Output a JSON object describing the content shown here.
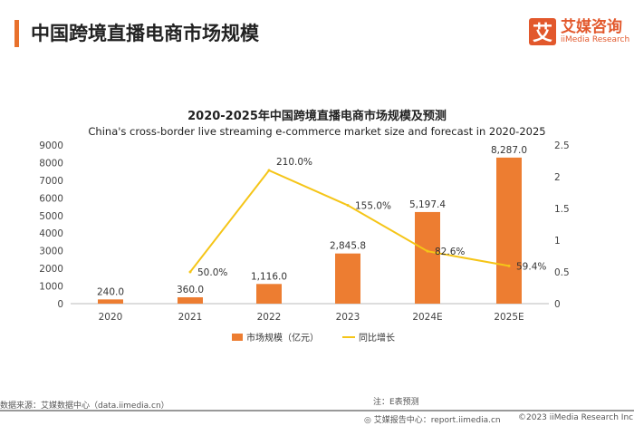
{
  "header": {
    "title": "中国跨境直播电商市场规模"
  },
  "logo": {
    "mark": "艾",
    "cn": "艾媒咨询",
    "en": "iiMedia Research"
  },
  "chart_data": {
    "type": "bar+line",
    "title": "2020-2025年中国跨境直播电商市场规模及预测",
    "subtitle": "China's cross-border live streaming e-commerce market size and forecast in 2020-2025",
    "categories": [
      "2020",
      "2021",
      "2022",
      "2023",
      "2024E",
      "2025E"
    ],
    "series": [
      {
        "name": "市场规模（亿元）",
        "type": "bar",
        "axis": "left",
        "color": "#ed7d31",
        "values": [
          240.0,
          360.0,
          1116.0,
          2845.8,
          5197.4,
          8287.0
        ],
        "labels": [
          "240.0",
          "360.0",
          "1,116.0",
          "2,845.8",
          "5,197.4",
          "8,287.0"
        ]
      },
      {
        "name": "同比增长",
        "type": "line",
        "axis": "right",
        "color": "#f5c518",
        "values": [
          null,
          0.5,
          2.1,
          1.55,
          0.826,
          0.594
        ],
        "labels": [
          "",
          "50.0%",
          "210.0%",
          "155.0%",
          "82.6%",
          "59.4%"
        ]
      }
    ],
    "left_axis": {
      "ylim": [
        0,
        9000
      ],
      "ticks": [
        "0",
        "1000",
        "2000",
        "3000",
        "4000",
        "5000",
        "6000",
        "7000",
        "8000",
        "9000"
      ]
    },
    "right_axis": {
      "ylim": [
        0,
        2.5
      ],
      "ticks": [
        "0",
        "0.5",
        "1",
        "1.5",
        "2",
        "2.5"
      ]
    },
    "legend": "bottom",
    "grid": false
  },
  "footer": {
    "source": "数据来源：艾媒数据中心（data.iimedia.cn）",
    "note": "注：E表预测",
    "report": "艾媒报告中心：report.iimedia.cn",
    "copyright": "©2023  iiMedia Research  Inc"
  }
}
